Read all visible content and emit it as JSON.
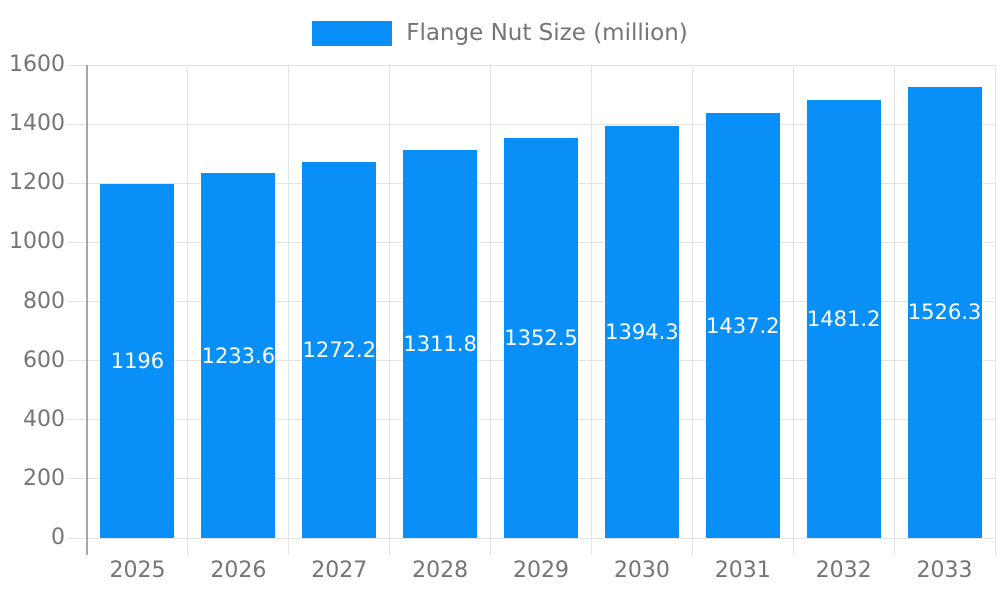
{
  "legend": {
    "label": "Flange Nut Size (million)"
  },
  "chart_data": {
    "type": "bar",
    "title": "Flange Nut Size (million)",
    "categories": [
      "2025",
      "2026",
      "2027",
      "2028",
      "2029",
      "2030",
      "2031",
      "2032",
      "2033"
    ],
    "series": [
      {
        "name": "Flange Nut Size (million)",
        "values": [
          1196,
          1233.6,
          1272.2,
          1311.8,
          1352.5,
          1394.3,
          1437.2,
          1481.2,
          1526.3
        ]
      }
    ],
    "data_labels": [
      "1196",
      "1233.6",
      "1272.2",
      "1311.8",
      "1352.5",
      "1394.3",
      "1437.2",
      "1481.2",
      "1526.3"
    ],
    "xlabel": "",
    "ylabel": "",
    "ylim": [
      0,
      1600
    ],
    "ytick_step": 200,
    "ytick_labels": [
      "0",
      "200",
      "400",
      "600",
      "800",
      "1000",
      "1200",
      "1400",
      "1600"
    ],
    "grid": true,
    "legend_position": "top-center",
    "colors": {
      "bar": "#0890f8",
      "grid": "#e3e3e3",
      "axis": "#a6a6a6",
      "tick_label": "#757575",
      "data_label": "#ffffff",
      "background": "#ffffff"
    }
  }
}
